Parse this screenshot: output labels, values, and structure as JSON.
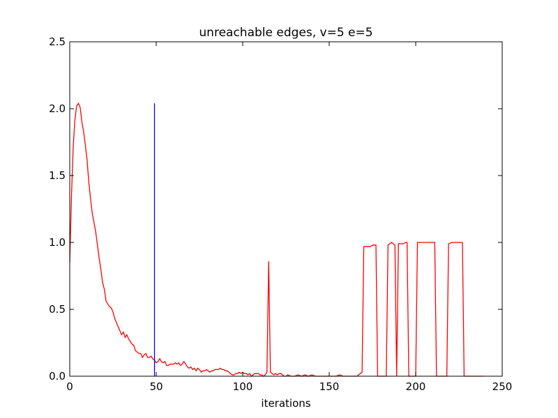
{
  "chart_data": {
    "type": "line",
    "title": "unreachable edges, v=5 e=5",
    "xlabel": "iterations",
    "ylabel": "",
    "xlim": [
      0,
      250
    ],
    "ylim": [
      0,
      2.5
    ],
    "x_ticks": [
      "0",
      "50",
      "100",
      "150",
      "200",
      "250"
    ],
    "y_ticks": [
      "0.0",
      "0.5",
      "1.0",
      "1.5",
      "2.0",
      "2.5"
    ],
    "grid": false,
    "legend": "none",
    "series": [
      {
        "color": "#ff0000",
        "points": [
          [
            0,
            0.85
          ],
          [
            1,
            1.35
          ],
          [
            2,
            1.72
          ],
          [
            3,
            1.92
          ],
          [
            4,
            2.02
          ],
          [
            5,
            2.04
          ],
          [
            6,
            2.01
          ],
          [
            7,
            1.9
          ],
          [
            8,
            1.83
          ],
          [
            9,
            1.73
          ],
          [
            10,
            1.62
          ],
          [
            11,
            1.45
          ],
          [
            12,
            1.33
          ],
          [
            13,
            1.22
          ],
          [
            14,
            1.15
          ],
          [
            15,
            1.08
          ],
          [
            16,
            0.98
          ],
          [
            17,
            0.88
          ],
          [
            18,
            0.8
          ],
          [
            19,
            0.7
          ],
          [
            20,
            0.65
          ],
          [
            21,
            0.56
          ],
          [
            22,
            0.54
          ],
          [
            23,
            0.52
          ],
          [
            24,
            0.51
          ],
          [
            25,
            0.48
          ],
          [
            26,
            0.43
          ],
          [
            27,
            0.4
          ],
          [
            28,
            0.37
          ],
          [
            29,
            0.34
          ],
          [
            30,
            0.31
          ],
          [
            31,
            0.33
          ],
          [
            32,
            0.29
          ],
          [
            33,
            0.31
          ],
          [
            34,
            0.28
          ],
          [
            35,
            0.26
          ],
          [
            36,
            0.24
          ],
          [
            37,
            0.23
          ],
          [
            38,
            0.19
          ],
          [
            39,
            0.18
          ],
          [
            40,
            0.17
          ],
          [
            41,
            0.17
          ],
          [
            42,
            0.14
          ],
          [
            43,
            0.16
          ],
          [
            44,
            0.17
          ],
          [
            45,
            0.14
          ],
          [
            46,
            0.14
          ],
          [
            47,
            0.15
          ],
          [
            48,
            0.13
          ],
          [
            49,
            0.12
          ],
          [
            50,
            0.1
          ],
          [
            51,
            0.11
          ],
          [
            52,
            0.13
          ],
          [
            53,
            0.11
          ],
          [
            54,
            0.1
          ],
          [
            55,
            0.11
          ],
          [
            56,
            0.08
          ],
          [
            57,
            0.08
          ],
          [
            58,
            0.09
          ],
          [
            59,
            0.09
          ],
          [
            60,
            0.09
          ],
          [
            61,
            0.1
          ],
          [
            62,
            0.09
          ],
          [
            63,
            0.1
          ],
          [
            64,
            0.08
          ],
          [
            65,
            0.09
          ],
          [
            66,
            0.11
          ],
          [
            67,
            0.09
          ],
          [
            68,
            0.07
          ],
          [
            69,
            0.06
          ],
          [
            70,
            0.07
          ],
          [
            71,
            0.05
          ],
          [
            72,
            0.06
          ],
          [
            73,
            0.04
          ],
          [
            74,
            0.06
          ],
          [
            75,
            0.05
          ],
          [
            76,
            0.03
          ],
          [
            77,
            0.04
          ],
          [
            78,
            0.04
          ],
          [
            79,
            0.05
          ],
          [
            80,
            0.04
          ],
          [
            81,
            0.03
          ],
          [
            82,
            0.04
          ],
          [
            83,
            0.04
          ],
          [
            84,
            0.05
          ],
          [
            85,
            0.05
          ],
          [
            86,
            0.05
          ],
          [
            87,
            0.06
          ],
          [
            88,
            0.05
          ],
          [
            89,
            0.05
          ],
          [
            90,
            0.04
          ],
          [
            91,
            0.04
          ],
          [
            92,
            0.03
          ],
          [
            93,
            0.02
          ],
          [
            94,
            0.01
          ],
          [
            95,
            0.01
          ],
          [
            96,
            0.02
          ],
          [
            97,
            0.02
          ],
          [
            98,
            0.03
          ],
          [
            99,
            0.02
          ],
          [
            100,
            0.03
          ],
          [
            101,
            0.02
          ],
          [
            102,
            0.02
          ],
          [
            103,
            0.01
          ],
          [
            104,
            0.02
          ],
          [
            105,
            0.0
          ],
          [
            106,
            0.01
          ],
          [
            107,
            0.02
          ],
          [
            108,
            0.02
          ],
          [
            109,
            0.02
          ],
          [
            110,
            0.01
          ],
          [
            111,
            0.01
          ],
          [
            112,
            0.0
          ],
          [
            113,
            0.01
          ],
          [
            114,
            0.03
          ],
          [
            115,
            0.86
          ],
          [
            116,
            0.03
          ],
          [
            117,
            0.02
          ],
          [
            118,
            0.01
          ],
          [
            119,
            0.02
          ],
          [
            120,
            0.01
          ],
          [
            121,
            0.02
          ],
          [
            122,
            0.02
          ],
          [
            123,
            0.01
          ],
          [
            124,
            0.0
          ],
          [
            125,
            0.0
          ],
          [
            126,
            0.01
          ],
          [
            128,
            0.0
          ],
          [
            130,
            0.0
          ],
          [
            132,
            0.01
          ],
          [
            134,
            0.0
          ],
          [
            136,
            0.01
          ],
          [
            138,
            0.0
          ],
          [
            140,
            0.01
          ],
          [
            142,
            0.0
          ],
          [
            144,
            0.0
          ],
          [
            146,
            0.0
          ],
          [
            148,
            0.0
          ],
          [
            150,
            0.0
          ],
          [
            152,
            0.0
          ],
          [
            154,
            0.0
          ],
          [
            156,
            0.01
          ],
          [
            158,
            0.0
          ],
          [
            160,
            0.0
          ],
          [
            162,
            0.0
          ],
          [
            164,
            0.0
          ],
          [
            166,
            0.0
          ],
          [
            168,
            0.02
          ],
          [
            169,
            0.03
          ],
          [
            170,
            0.97
          ],
          [
            172,
            0.97
          ],
          [
            174,
            0.97
          ],
          [
            175,
            0.98
          ],
          [
            177,
            0.98
          ],
          [
            178,
            0.0
          ],
          [
            180,
            0.0
          ],
          [
            182,
            0.0
          ],
          [
            183,
            0.0
          ],
          [
            184,
            0.98
          ],
          [
            185,
            0.99
          ],
          [
            186,
            1.0
          ],
          [
            187,
            0.99
          ],
          [
            188,
            0.98
          ],
          [
            189,
            0.0
          ],
          [
            190,
            0.99
          ],
          [
            192,
            0.99
          ],
          [
            193,
            0.99
          ],
          [
            194,
            1.0
          ],
          [
            195,
            1.0
          ],
          [
            196,
            0.0
          ],
          [
            198,
            0.0
          ],
          [
            200,
            0.0
          ],
          [
            201,
            1.0
          ],
          [
            203,
            1.0
          ],
          [
            205,
            1.0
          ],
          [
            207,
            1.0
          ],
          [
            209,
            1.0
          ],
          [
            211,
            1.0
          ],
          [
            212,
            0.0
          ],
          [
            214,
            0.0
          ],
          [
            216,
            0.0
          ],
          [
            218,
            0.0
          ],
          [
            219,
            0.99
          ],
          [
            221,
            1.0
          ],
          [
            223,
            1.0
          ],
          [
            225,
            1.0
          ],
          [
            227,
            1.0
          ],
          [
            228,
            0.0
          ],
          [
            230,
            0.0
          ],
          [
            233,
            0.0
          ],
          [
            236,
            0.0
          ],
          [
            239,
            0.0
          ]
        ]
      },
      {
        "color": "#0000ff",
        "points": [
          [
            49,
            0.0
          ],
          [
            49,
            2.04
          ]
        ]
      }
    ]
  }
}
